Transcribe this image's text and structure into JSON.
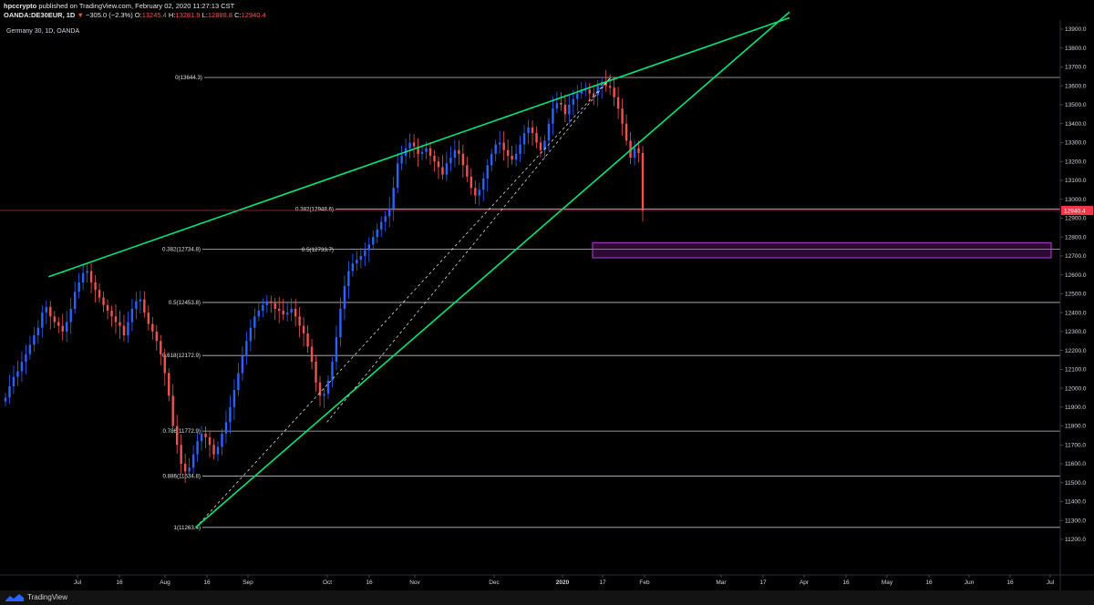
{
  "header": {
    "publisher": "hpccrypto",
    "published_text": "published on TradingView.com, February 02, 2020 11:27:13 CST",
    "symbol": "OANDA:DE30EUR, 1D",
    "change": "−305.0 (−2.3%)",
    "ohlc": {
      "O": "13245.4",
      "H": "13281.9",
      "L": "12888.8",
      "C": "12940.4"
    }
  },
  "footer": {
    "brand": "TradingView"
  },
  "colors": {
    "background": "#000000",
    "up": "#2962ff",
    "down": "#ef5350",
    "trendline": "#00e676",
    "fib_line": "#d1d4dc",
    "price_tag": "#f23645",
    "zone": "#9c27b0"
  },
  "chart_data": {
    "type": "candlestick",
    "title": "Germany 30, 1D, OANDA",
    "ylim": [
      11100,
      13950
    ],
    "y_ticks": [
      "13900.0",
      "13800.0",
      "13700.0",
      "13600.0",
      "13500.0",
      "13400.0",
      "13300.0",
      "13200.0",
      "13100.0",
      "13000.0",
      "12900.0",
      "12800.0",
      "12700.0",
      "12600.0",
      "12500.0",
      "12400.0",
      "12300.0",
      "12200.0",
      "12100.0",
      "12000.0",
      "11900.0",
      "11800.0",
      "11700.0",
      "11600.0",
      "11500.0",
      "11400.0",
      "11300.0",
      "11200.0"
    ],
    "x_ticks": [
      {
        "label": "Jul",
        "bold": false
      },
      {
        "label": "16",
        "bold": false
      },
      {
        "label": "Aug",
        "bold": false
      },
      {
        "label": "16",
        "bold": false
      },
      {
        "label": "Sep",
        "bold": false
      },
      {
        "label": "Oct",
        "bold": false
      },
      {
        "label": "16",
        "bold": false
      },
      {
        "label": "Nov",
        "bold": false
      },
      {
        "label": "Dec",
        "bold": false
      },
      {
        "label": "2020",
        "bold": true
      },
      {
        "label": "17",
        "bold": false
      },
      {
        "label": "Feb",
        "bold": false
      },
      {
        "label": "Mar",
        "bold": false
      },
      {
        "label": "17",
        "bold": false
      },
      {
        "label": "Apr",
        "bold": false
      },
      {
        "label": "16",
        "bold": false
      },
      {
        "label": "May",
        "bold": false
      },
      {
        "label": "16",
        "bold": false
      },
      {
        "label": "Jun",
        "bold": false
      },
      {
        "label": "16",
        "bold": false
      },
      {
        "label": "Jul",
        "bold": false
      }
    ],
    "last_price": {
      "value": 12940.4,
      "label": "12940.4"
    },
    "fib_levels": [
      {
        "label": "0(13644.3)",
        "value": 13644.3
      },
      {
        "label": "0.382(12948.6)",
        "value": 12948.6
      },
      {
        "label": "0.382(12734.8)",
        "value": 12734.8
      },
      {
        "label": "0.5(12733.7)",
        "value": 12733.7
      },
      {
        "label": "0.5(12453.8)",
        "value": 12453.8
      },
      {
        "label": "0.618(12172.9)",
        "value": 12172.9
      },
      {
        "label": "0.786(11772.9)",
        "value": 11772.9
      },
      {
        "label": "0.886(11534.8)",
        "value": 11534.8
      },
      {
        "label": "1(11263.4)",
        "value": 11263.4
      }
    ],
    "zone": {
      "low": 12690,
      "high": 12770
    },
    "trendlines": [
      {
        "name": "",
        "from": [
          "2019-06-20",
          12590
        ],
        "to": [
          "2020-03-24",
          13940
        ]
      },
      {
        "name": "",
        "from": [
          "2019-08-15",
          11263
        ],
        "to": [
          "2020-03-24",
          13940
        ]
      }
    ],
    "channel_lines": [
      {
        "from": [
          "2019-08-15",
          11263
        ],
        "to": [
          "2020-01-20",
          13644
        ]
      },
      {
        "from": [
          "2019-10-04",
          11820
        ],
        "to": [
          "2020-01-20",
          13644
        ]
      }
    ],
    "closes": [
      11950,
      12010,
      12060,
      12090,
      12140,
      12180,
      12230,
      12280,
      12320,
      12400,
      12430,
      12380,
      12350,
      12330,
      12300,
      12350,
      12420,
      12510,
      12560,
      12610,
      12620,
      12560,
      12520,
      12480,
      12440,
      12410,
      12380,
      12350,
      12330,
      12280,
      12350,
      12420,
      12460,
      12470,
      12400,
      12340,
      12300,
      12250,
      12180,
      12080,
      11960,
      11800,
      11700,
      11600,
      11560,
      11580,
      11650,
      11720,
      11760,
      11740,
      11700,
      11650,
      11690,
      11760,
      11820,
      11900,
      11990,
      12080,
      12170,
      12250,
      12320,
      12380,
      12410,
      12440,
      12460,
      12450,
      12420,
      12410,
      12390,
      12400,
      12420,
      12380,
      12330,
      12290,
      12220,
      12140,
      12030,
      11960,
      11970,
      12040,
      12140,
      12270,
      12420,
      12540,
      12620,
      12660,
      12680,
      12700,
      12730,
      12760,
      12800,
      12840,
      12880,
      12910,
      12950,
      13060,
      13190,
      13230,
      13270,
      13300,
      13280,
      13240,
      13250,
      13270,
      13230,
      13200,
      13170,
      13130,
      13190,
      13220,
      13260,
      13240,
      13180,
      13120,
      13060,
      13020,
      13050,
      13110,
      13180,
      13240,
      13290,
      13300,
      13260,
      13230,
      13210,
      13240,
      13290,
      13350,
      13380,
      13350,
      13300,
      13260,
      13310,
      13400,
      13480,
      13510,
      13500,
      13450,
      13500,
      13530,
      13560,
      13580,
      13580,
      13560,
      13550,
      13600,
      13620,
      13600,
      13590,
      13540,
      13480,
      13400,
      13310,
      13220,
      13270,
      13245,
      12940
    ]
  }
}
